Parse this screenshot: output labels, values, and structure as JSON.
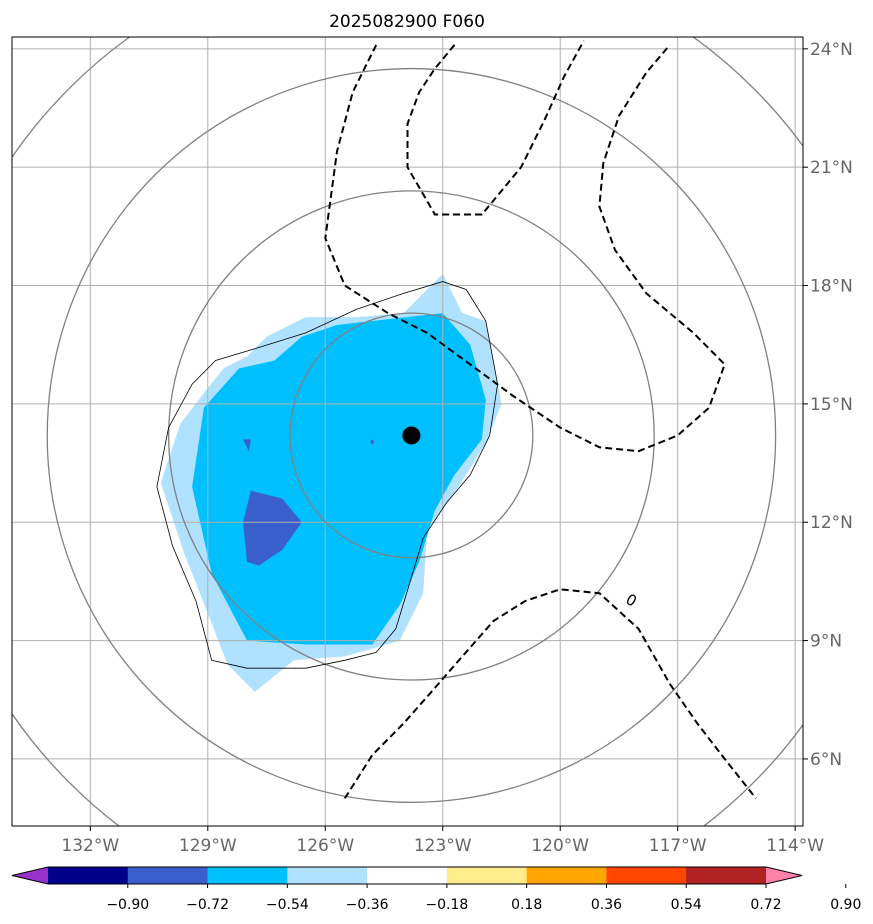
{
  "chart_data": {
    "type": "heatmap",
    "title": "2025082900 F060",
    "xlabel": "",
    "ylabel": "",
    "xlim": [
      -134.0,
      -113.8
    ],
    "ylim": [
      4.3,
      24.3
    ],
    "grid": true,
    "lon_ticks": [
      {
        "value": -132,
        "label": "132°W"
      },
      {
        "value": -129,
        "label": "129°W"
      },
      {
        "value": -126,
        "label": "126°W"
      },
      {
        "value": -123,
        "label": "123°W"
      },
      {
        "value": -120,
        "label": "120°W"
      },
      {
        "value": -117,
        "label": "117°W"
      },
      {
        "value": -114,
        "label": "114°W"
      }
    ],
    "lat_ticks": [
      {
        "value": 6,
        "label": "6°N"
      },
      {
        "value": 9,
        "label": "9°N"
      },
      {
        "value": 12,
        "label": "12°N"
      },
      {
        "value": 15,
        "label": "15°N"
      },
      {
        "value": 18,
        "label": "18°N"
      },
      {
        "value": 21,
        "label": "21°N"
      },
      {
        "value": 24,
        "label": "24°N"
      }
    ],
    "center": {
      "lon": -123.8,
      "lat": 14.2
    },
    "range_rings_deg": [
      3.1,
      6.2,
      9.3,
      12.4
    ],
    "colorbar": {
      "boundaries": [
        "−0.90",
        "−0.72",
        "−0.54",
        "−0.36",
        "−0.18",
        "0.18",
        "0.36",
        "0.54",
        "0.72",
        "0.90"
      ],
      "colors": [
        "#9932cc",
        "#00008b",
        "#3a5fcd",
        "#00bfff",
        "#b0e2ff",
        "#ffffff",
        "#ffec8b",
        "#ffa500",
        "#ff4500",
        "#b22222",
        "#ff82ab"
      ]
    },
    "filled_regions": [
      {
        "level": "-0.36 to -0.18",
        "color": "#b0e2ff",
        "polygon": [
          [
            -130.2,
            13.0
          ],
          [
            -129.7,
            14.5
          ],
          [
            -129.0,
            15.4
          ],
          [
            -128.6,
            15.9
          ],
          [
            -128.0,
            16.2
          ],
          [
            -127.5,
            16.7
          ],
          [
            -126.5,
            17.2
          ],
          [
            -125.2,
            17.2
          ],
          [
            -124.0,
            17.3
          ],
          [
            -123.0,
            18.3
          ],
          [
            -122.5,
            17.3
          ],
          [
            -121.9,
            17.1
          ],
          [
            -121.5,
            15.0
          ],
          [
            -121.9,
            14.0
          ],
          [
            -122.6,
            12.9
          ],
          [
            -123.4,
            11.8
          ],
          [
            -123.5,
            10.2
          ],
          [
            -124.1,
            9.0
          ],
          [
            -125.5,
            8.6
          ],
          [
            -126.8,
            8.5
          ],
          [
            -127.8,
            7.7
          ],
          [
            -128.5,
            8.4
          ],
          [
            -129.2,
            10.2
          ],
          [
            -129.6,
            11.2
          ],
          [
            -130.2,
            13.0
          ]
        ]
      },
      {
        "level": "-0.54 to -0.36",
        "color": "#00bfff",
        "polygon": [
          [
            -129.4,
            12.9
          ],
          [
            -129.1,
            14.9
          ],
          [
            -128.2,
            15.9
          ],
          [
            -127.3,
            16.1
          ],
          [
            -126.6,
            16.7
          ],
          [
            -125.7,
            17.0
          ],
          [
            -123.0,
            17.3
          ],
          [
            -122.3,
            16.5
          ],
          [
            -121.9,
            15.1
          ],
          [
            -122.0,
            14.1
          ],
          [
            -122.7,
            13.2
          ],
          [
            -123.2,
            12.3
          ],
          [
            -123.6,
            11.0
          ],
          [
            -124.1,
            9.9
          ],
          [
            -124.8,
            8.9
          ],
          [
            -126.5,
            8.9
          ],
          [
            -128.0,
            9.0
          ],
          [
            -128.9,
            10.7
          ],
          [
            -129.4,
            12.9
          ]
        ]
      },
      {
        "level": "-0.72 to -0.54",
        "color": "#3a5fcd",
        "polygon": [
          [
            -128.1,
            12.0
          ],
          [
            -127.9,
            12.8
          ],
          [
            -127.1,
            12.6
          ],
          [
            -126.6,
            12.0
          ],
          [
            -127.1,
            11.3
          ],
          [
            -127.7,
            10.9
          ],
          [
            -128.0,
            11.0
          ],
          [
            -128.1,
            12.0
          ]
        ]
      },
      {
        "level": "-0.72 to -0.54",
        "color": "#3a5fcd",
        "polygon": [
          [
            -128.1,
            14.1
          ],
          [
            -127.9,
            14.1
          ],
          [
            -127.95,
            13.8
          ],
          [
            -128.1,
            14.1
          ]
        ]
      },
      {
        "level": "-0.72 to -0.54",
        "color": "#3a5fcd",
        "polygon": [
          [
            -124.8,
            14.1
          ],
          [
            -124.75,
            14.05
          ],
          [
            -124.8,
            13.95
          ],
          [
            -124.85,
            14.05
          ],
          [
            -124.8,
            14.1
          ]
        ]
      }
    ],
    "thin_contour": [
      [
        -130.3,
        12.9
      ],
      [
        -130.0,
        14.4
      ],
      [
        -129.4,
        15.5
      ],
      [
        -128.8,
        16.1
      ],
      [
        -127.8,
        16.4
      ],
      [
        -126.5,
        16.8
      ],
      [
        -125.2,
        17.4
      ],
      [
        -124.0,
        17.8
      ],
      [
        -123.0,
        18.1
      ],
      [
        -122.4,
        17.9
      ],
      [
        -121.9,
        17.1
      ],
      [
        -121.6,
        15.5
      ],
      [
        -121.8,
        14.2
      ],
      [
        -122.3,
        13.2
      ],
      [
        -122.9,
        12.5
      ],
      [
        -123.5,
        11.6
      ],
      [
        -123.8,
        10.6
      ],
      [
        -124.2,
        9.3
      ],
      [
        -124.7,
        8.7
      ],
      [
        -125.5,
        8.5
      ],
      [
        -126.5,
        8.3
      ],
      [
        -128.0,
        8.3
      ],
      [
        -128.9,
        8.5
      ],
      [
        -129.3,
        10.0
      ],
      [
        -129.9,
        11.4
      ],
      [
        -130.3,
        12.9
      ]
    ],
    "dashed_contours": [
      {
        "points": [
          [
            -124.7,
            24.1
          ],
          [
            -125.3,
            22.9
          ],
          [
            -125.7,
            21.4
          ],
          [
            -126.0,
            19.2
          ],
          [
            -125.5,
            18.0
          ],
          [
            -124.4,
            17.3
          ],
          [
            -123.4,
            16.8
          ],
          [
            -122.3,
            16.0
          ],
          [
            -121.2,
            15.2
          ],
          [
            -120.0,
            14.4
          ],
          [
            -119.0,
            13.9
          ],
          [
            -118.0,
            13.8
          ],
          [
            -117.0,
            14.2
          ],
          [
            -116.2,
            14.9
          ],
          [
            -115.8,
            16.0
          ],
          [
            -116.6,
            16.8
          ],
          [
            -117.8,
            17.8
          ],
          [
            -118.6,
            18.9
          ],
          [
            -119.0,
            20.0
          ],
          [
            -118.9,
            21.1
          ],
          [
            -118.5,
            22.3
          ],
          [
            -117.8,
            23.4
          ],
          [
            -117.2,
            24.1
          ]
        ]
      },
      {
        "points": [
          [
            -122.7,
            24.1
          ],
          [
            -123.2,
            23.5
          ],
          [
            -123.6,
            22.9
          ],
          [
            -123.9,
            22.1
          ],
          [
            -123.9,
            21.0
          ],
          [
            -123.2,
            19.8
          ],
          [
            -122.0,
            19.8
          ],
          [
            -121.0,
            21.0
          ],
          [
            -120.4,
            22.2
          ],
          [
            -119.9,
            23.3
          ],
          [
            -119.4,
            24.2
          ]
        ]
      },
      {
        "points": [
          [
            -125.5,
            5.0
          ],
          [
            -124.8,
            6.1
          ],
          [
            -124.0,
            6.9
          ],
          [
            -123.2,
            7.8
          ],
          [
            -122.5,
            8.6
          ],
          [
            -121.7,
            9.5
          ],
          [
            -120.9,
            10.0
          ],
          [
            -120.0,
            10.3
          ],
          [
            -119.0,
            10.2
          ],
          [
            -118.0,
            9.3
          ],
          [
            -117.2,
            7.9
          ],
          [
            -116.5,
            6.9
          ],
          [
            -115.8,
            6.0
          ],
          [
            -115.0,
            5.0
          ]
        ]
      }
    ],
    "contour_labels": [
      {
        "text": "0",
        "lon": -118.2,
        "lat": 10.0
      }
    ]
  }
}
